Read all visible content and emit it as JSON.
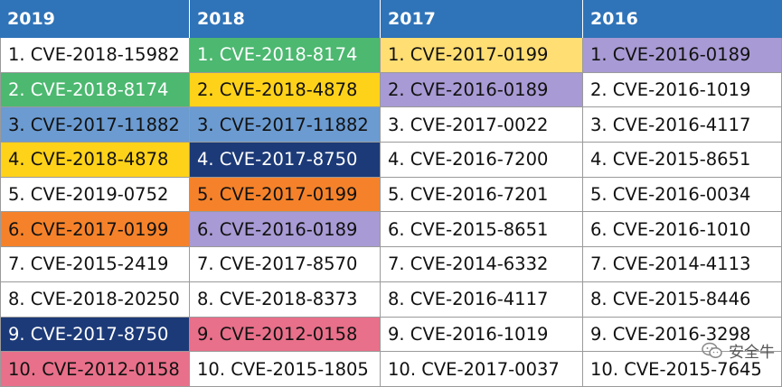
{
  "columns": [
    {
      "header": "2019",
      "cells": [
        {
          "text": "1. CVE-2018-15982",
          "color": "white"
        },
        {
          "text": "2. CVE-2018-8174",
          "color": "green"
        },
        {
          "text": "3. CVE-2017-11882",
          "color": "blue"
        },
        {
          "text": "4. CVE-2018-4878",
          "color": "yellow"
        },
        {
          "text": "5. CVE-2019-0752",
          "color": "white"
        },
        {
          "text": "6. CVE-2017-0199",
          "color": "orange"
        },
        {
          "text": "7. CVE-2015-2419",
          "color": "white"
        },
        {
          "text": "8. CVE-2018-20250",
          "color": "white"
        },
        {
          "text": "9. CVE-2017-8750",
          "color": "navy"
        },
        {
          "text": "10. CVE-2012-0158",
          "color": "pink"
        }
      ]
    },
    {
      "header": "2018",
      "cells": [
        {
          "text": "1. CVE-2018-8174",
          "color": "green"
        },
        {
          "text": "2. CVE-2018-4878",
          "color": "yellow"
        },
        {
          "text": "3. CVE-2017-11882",
          "color": "blue"
        },
        {
          "text": "4. CVE-2017-8750",
          "color": "navy"
        },
        {
          "text": "5. CVE-2017-0199",
          "color": "orange"
        },
        {
          "text": "6. CVE-2016-0189",
          "color": "purple"
        },
        {
          "text": "7. CVE-2017-8570",
          "color": "white"
        },
        {
          "text": "8. CVE-2018-8373",
          "color": "white"
        },
        {
          "text": "9. CVE-2012-0158",
          "color": "pink"
        },
        {
          "text": "10. CVE-2015-1805",
          "color": "white"
        }
      ]
    },
    {
      "header": "2017",
      "cells": [
        {
          "text": "1. CVE-2017-0199",
          "color": "lyellow"
        },
        {
          "text": "2. CVE-2016-0189",
          "color": "purple"
        },
        {
          "text": "3. CVE-2017-0022",
          "color": "white"
        },
        {
          "text": "4. CVE-2016-7200",
          "color": "white"
        },
        {
          "text": "5. CVE-2016-7201",
          "color": "white"
        },
        {
          "text": "6. CVE-2015-8651",
          "color": "white"
        },
        {
          "text": "7. CVE-2014-6332",
          "color": "white"
        },
        {
          "text": "8. CVE-2016-4117",
          "color": "white"
        },
        {
          "text": "9. CVE-2016-1019",
          "color": "white"
        },
        {
          "text": "10. CVE-2017-0037",
          "color": "white"
        }
      ]
    },
    {
      "header": "2016",
      "cells": [
        {
          "text": "1. CVE-2016-0189",
          "color": "purple"
        },
        {
          "text": "2. CVE-2016-1019",
          "color": "white"
        },
        {
          "text": "3. CVE-2016-4117",
          "color": "white"
        },
        {
          "text": "4. CVE-2015-8651",
          "color": "white"
        },
        {
          "text": "5. CVE-2016-0034",
          "color": "white"
        },
        {
          "text": "6. CVE-2016-1010",
          "color": "white"
        },
        {
          "text": "7. CVE-2014-4113",
          "color": "white"
        },
        {
          "text": "8. CVE-2015-8446",
          "color": "white"
        },
        {
          "text": "9. CVE-2016-3298",
          "color": "white"
        },
        {
          "text": "10. CVE-2015-7645",
          "color": "white"
        }
      ]
    }
  ],
  "palette": {
    "header": "#2f73b8",
    "white": "#ffffff",
    "green": "#4cb870",
    "yellow": "#ffd21a",
    "lyellow": "#ffde73",
    "blue": "#6b9bd1",
    "navy": "#1c3a78",
    "orange": "#f5822a",
    "purple": "#a89ad4",
    "pink": "#e8708a"
  },
  "watermark": {
    "text": "安全牛",
    "icon": "wechat-icon"
  }
}
